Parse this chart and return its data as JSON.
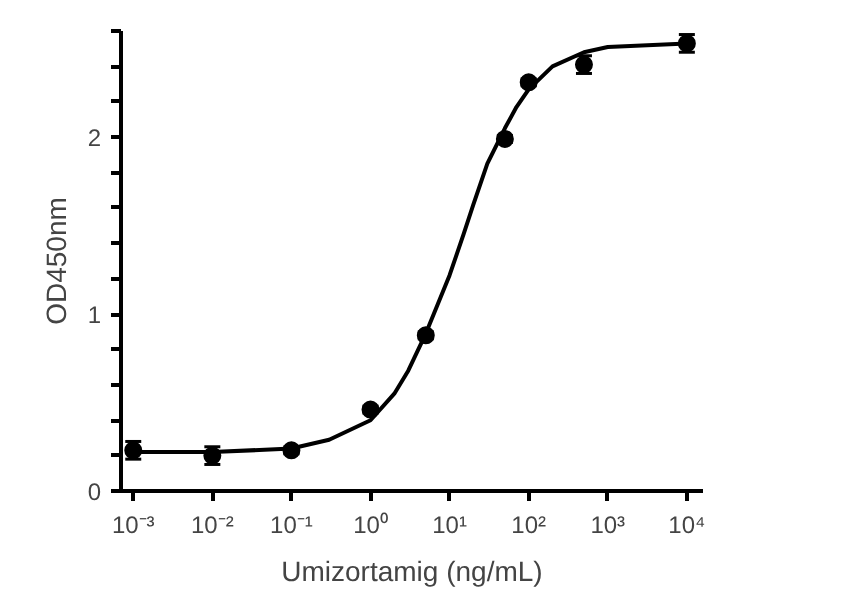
{
  "chart_data": {
    "type": "scatter",
    "xlabel": "Umizortamig (ng/mL)",
    "ylabel": "OD450nm",
    "log": "x",
    "grid": false,
    "marker": "circle",
    "xlim": [
      0.0007,
      16000
    ],
    "xticks": [
      {
        "value": 0.001,
        "label": "10⁻³"
      },
      {
        "value": 0.01,
        "label": "10⁻²"
      },
      {
        "value": 0.1,
        "label": "10⁻¹"
      },
      {
        "value": 1,
        "label": "10⁰"
      },
      {
        "value": 10,
        "label": "10¹"
      },
      {
        "value": 100,
        "label": "10²"
      },
      {
        "value": 1000,
        "label": "10³"
      },
      {
        "value": 10000,
        "label": "10⁴"
      }
    ],
    "ylim": [
      0,
      2.6
    ],
    "yticks": [
      0,
      {
        "value": 0.2,
        "label": null
      },
      {
        "value": 0.4,
        "label": null
      },
      {
        "value": 0.6,
        "label": null
      },
      {
        "value": 0.8,
        "label": null
      },
      1,
      {
        "value": 1.2,
        "label": null
      },
      {
        "value": 1.4,
        "label": null
      },
      {
        "value": 1.6,
        "label": null
      },
      {
        "value": 1.8,
        "label": null
      },
      2,
      {
        "value": 2.2,
        "label": null
      },
      {
        "value": 2.4,
        "label": null
      },
      {
        "value": 2.6,
        "label": null
      }
    ],
    "series": [
      {
        "color": "#000000",
        "x": [
          0.001,
          0.01,
          0.1,
          1,
          5,
          50,
          100,
          500,
          10000
        ],
        "values": [
          0.23,
          0.2,
          0.23,
          0.46,
          0.88,
          1.99,
          2.31,
          2.41,
          2.53
        ],
        "errors": [
          0.05,
          0.05,
          0.02,
          0.02,
          0.02,
          0.02,
          0.02,
          0.05,
          0.05
        ]
      },
      {
        "type": "line",
        "color": "#000000",
        "line_style": "solid",
        "marker": "none",
        "x": [
          0.001,
          0.01,
          0.1,
          0.3,
          1,
          2,
          3,
          5,
          7,
          10,
          15,
          20,
          30,
          50,
          70,
          100,
          200,
          500,
          1000,
          10000
        ],
        "values": [
          0.22,
          0.22,
          0.24,
          0.29,
          0.4,
          0.55,
          0.68,
          0.89,
          1.05,
          1.22,
          1.45,
          1.62,
          1.85,
          2.05,
          2.17,
          2.27,
          2.4,
          2.48,
          2.51,
          2.53
        ]
      }
    ]
  }
}
